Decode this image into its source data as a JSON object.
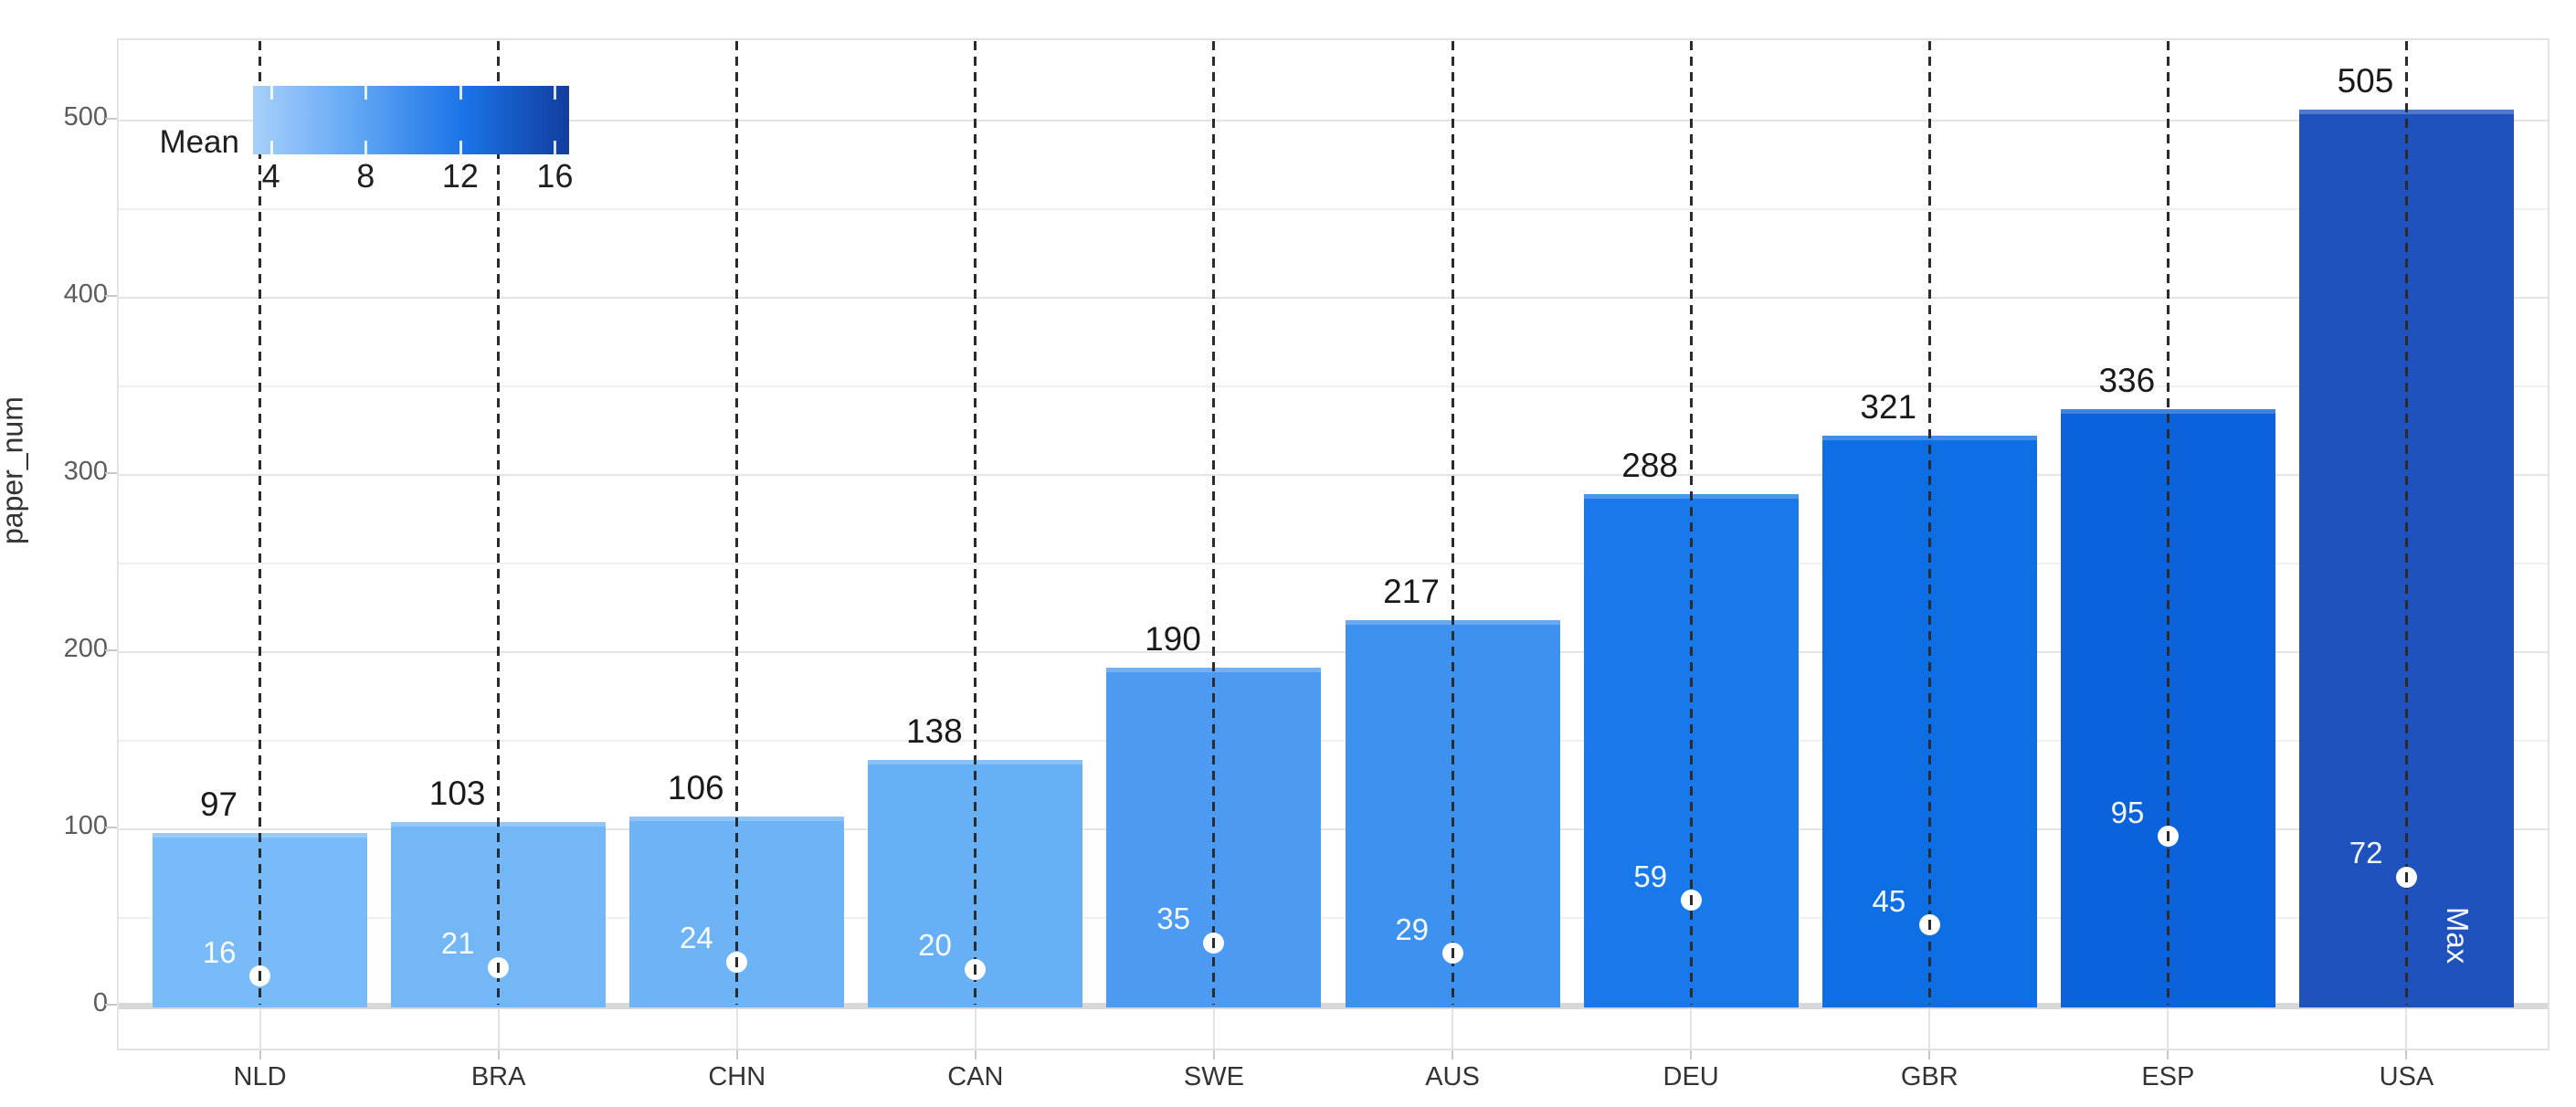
{
  "chart_data": {
    "type": "bar",
    "title": "",
    "xlabel": "",
    "ylabel": "paper_num",
    "ylim": [
      0,
      545
    ],
    "yticks": [
      0,
      100,
      200,
      300,
      400,
      500
    ],
    "grid_step": 50,
    "grid": true,
    "categories": [
      "NLD",
      "BRA",
      "CHN",
      "CAN",
      "SWE",
      "AUS",
      "DEU",
      "GBR",
      "ESP",
      "USA"
    ],
    "series": [
      {
        "name": "paper_num",
        "values": [
          97,
          103,
          106,
          138,
          190,
          217,
          288,
          321,
          336,
          505
        ]
      },
      {
        "name": "Mean",
        "values": [
          16,
          21,
          24,
          20,
          35,
          29,
          59,
          45,
          95,
          72
        ]
      }
    ],
    "bar_colors": [
      "#79BBF8",
      "#73B7F7",
      "#6DB3F6",
      "#67B0F5",
      "#4C9AF1",
      "#3D92EF",
      "#1978EA",
      "#0E6EE4",
      "#0B62DA",
      "#1F52BD"
    ],
    "marker_color": "#ffffff",
    "dash_line_color": "#2b2b2b",
    "annotations": [
      {
        "category": "USA",
        "text": "Max"
      }
    ],
    "legend": {
      "title": "Mean",
      "position": "top-left",
      "ticks": [
        4,
        8,
        12,
        16
      ],
      "domain": [
        3.24,
        16.6
      ],
      "gradient": [
        "#A7D0FB",
        "#60A5F4",
        "#1B74E8",
        "#123D9E"
      ]
    }
  }
}
